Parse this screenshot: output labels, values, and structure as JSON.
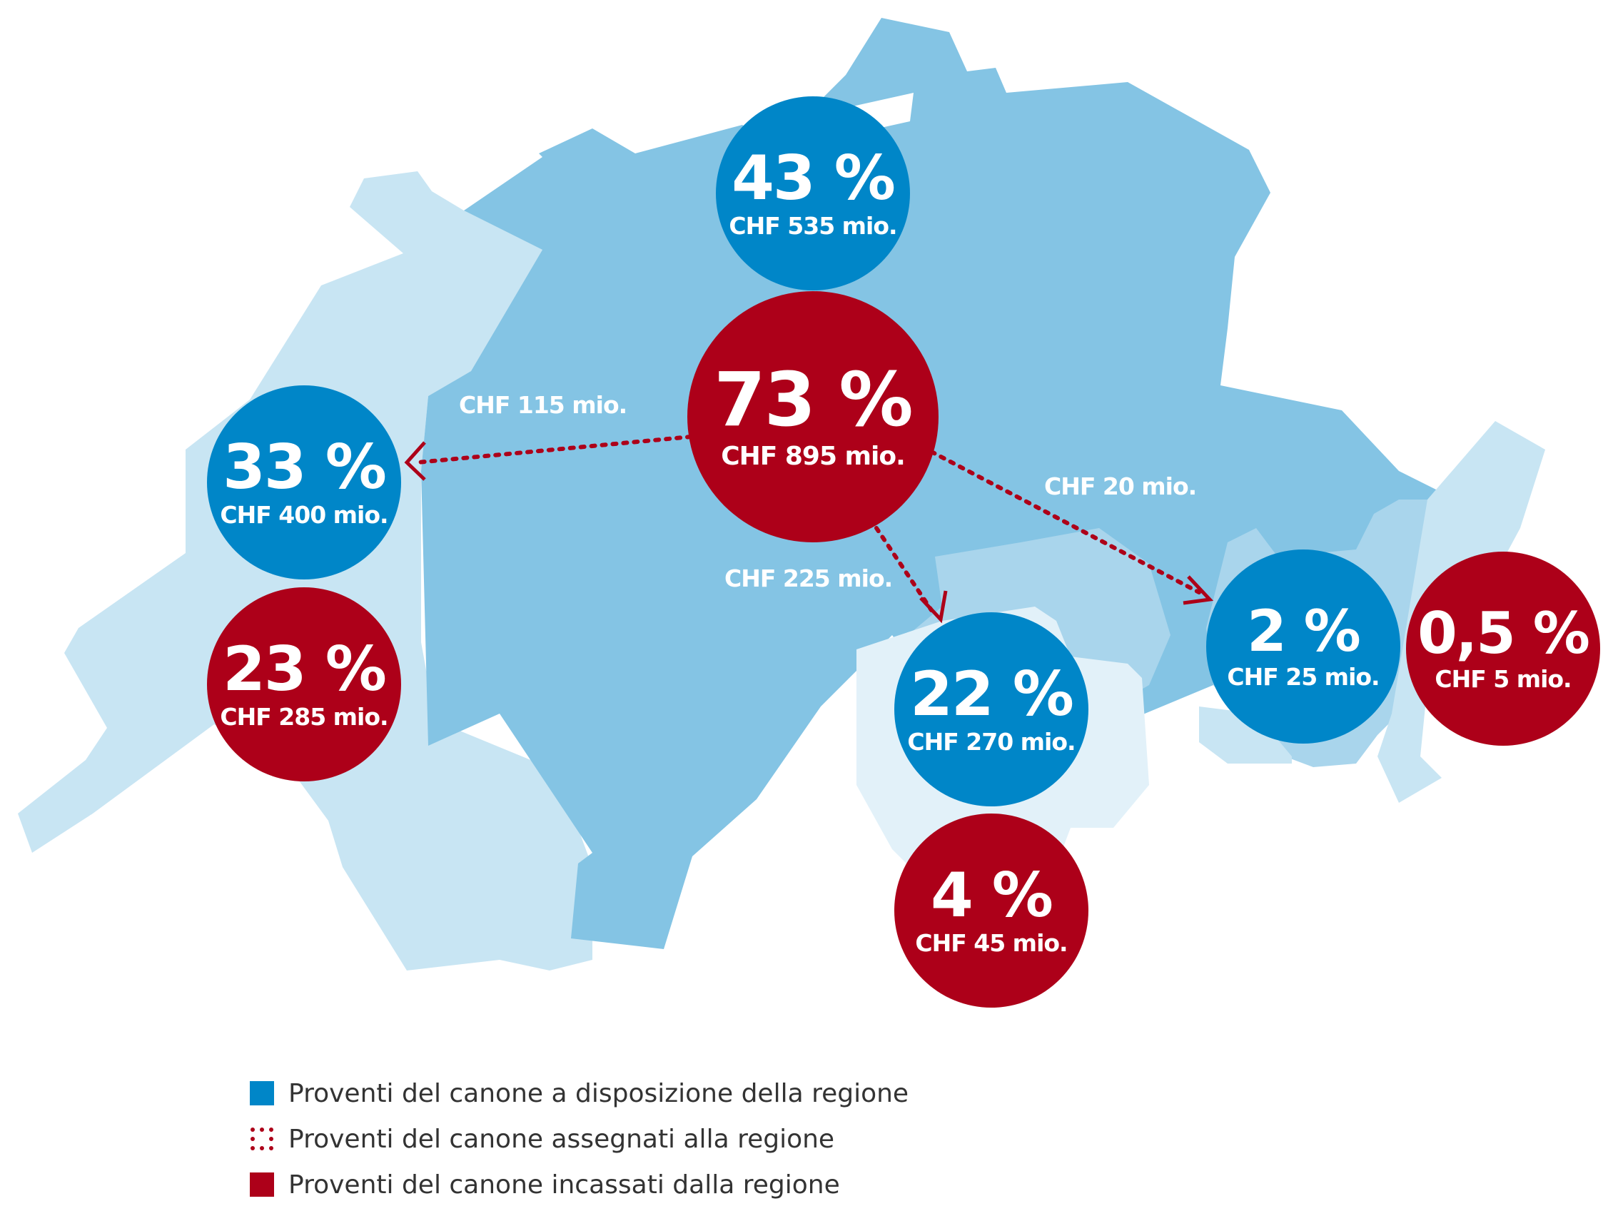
{
  "colors": {
    "available": "#0086c8",
    "collected": "#ad0019",
    "map_dark": "#84c4e4",
    "map_mid": "#a9d5ec",
    "map_light": "#c8e5f3",
    "map_lightest": "#e2f1f9"
  },
  "regions": {
    "german": {
      "available": {
        "pct": "43 %",
        "amount": "CHF 535 mio.",
        "pct_value": 43,
        "chf_mio": 535
      },
      "collected": {
        "pct": "73 %",
        "amount": "CHF 895 mio.",
        "pct_value": 73,
        "chf_mio": 895
      }
    },
    "french": {
      "available": {
        "pct": "33 %",
        "amount": "CHF 400 mio.",
        "pct_value": 33,
        "chf_mio": 400
      },
      "collected": {
        "pct": "23 %",
        "amount": "CHF 285 mio.",
        "pct_value": 23,
        "chf_mio": 285
      }
    },
    "italian": {
      "available": {
        "pct": "22 %",
        "amount": "CHF 270 mio.",
        "pct_value": 22,
        "chf_mio": 270
      },
      "collected": {
        "pct": "4 %",
        "amount": "CHF 45 mio.",
        "pct_value": 4,
        "chf_mio": 45
      }
    },
    "romansh": {
      "available": {
        "pct": "2 %",
        "amount": "CHF 25 mio.",
        "pct_value": 2,
        "chf_mio": 25
      },
      "collected": {
        "pct": "0,5 %",
        "amount": "CHF 5 mio.",
        "pct_value": 0.5,
        "chf_mio": 5
      }
    }
  },
  "flows": [
    {
      "from": "german",
      "to": "french",
      "label": "CHF 115 mio.",
      "chf_mio": 115
    },
    {
      "from": "german",
      "to": "italian",
      "label": "CHF 225 mio.",
      "chf_mio": 225
    },
    {
      "from": "german",
      "to": "romansh",
      "label": "CHF 20 mio.",
      "chf_mio": 20
    }
  ],
  "legend": [
    {
      "style": "solid-blue",
      "label": "Proventi del canone a disposizione della regione"
    },
    {
      "style": "dotted-red",
      "label": "Proventi del canone assegnati alla regione"
    },
    {
      "style": "solid-red",
      "label": "Proventi del canone incassati dalla regione"
    }
  ]
}
